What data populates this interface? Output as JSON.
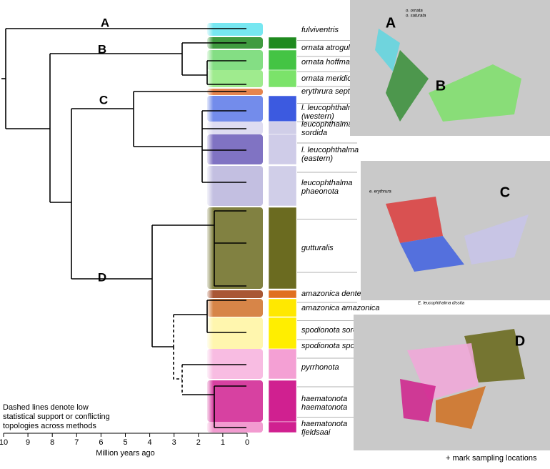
{
  "figure": {
    "clades": [
      "A",
      "B",
      "C",
      "D"
    ],
    "taxa": [
      {
        "lines": [
          "fulviventris"
        ]
      },
      {
        "lines": [
          "ornata atrogularis"
        ]
      },
      {
        "lines": [
          "ornata hoffmannsi"
        ]
      },
      {
        "lines": [
          "ornata meridionalis"
        ]
      },
      {
        "lines": [
          "erythrura septentrionalis"
        ]
      },
      {
        "lines": [
          "l. leucophthalma",
          "(western)"
        ]
      },
      {
        "lines": [
          "leucophthalma",
          "sordida"
        ]
      },
      {
        "lines": [
          "l. leucophthalma",
          "(eastern)"
        ]
      },
      {
        "lines": [
          "leucophthalma",
          "phaeonota"
        ]
      },
      {
        "lines": [
          "gutturalis"
        ]
      },
      {
        "lines": [
          "amazonica dentei"
        ]
      },
      {
        "lines": [
          "amazonica amazonica"
        ]
      },
      {
        "lines": [
          "spodionota sororia"
        ]
      },
      {
        "lines": [
          "spodionota spodionota"
        ]
      },
      {
        "lines": [
          "pyrrhonota"
        ]
      },
      {
        "lines": [
          "haematonota",
          "haematonota"
        ]
      },
      {
        "lines": [
          "haematonota",
          "fjeldsaai"
        ]
      }
    ],
    "axis": {
      "label": "Million years ago",
      "range": [
        10,
        0
      ],
      "ticks": [
        10,
        9,
        8,
        7,
        6,
        5,
        4,
        3,
        2,
        1,
        0
      ]
    },
    "note": [
      "Dashed lines denote low",
      "statistical support or conflicting",
      "topologies across methods"
    ],
    "maps": {
      "labels": [
        "A",
        "B",
        "C",
        "D"
      ],
      "small_labels": [
        "o. ornata",
        "o. saturata",
        "e. erythrura",
        "E. leucophthalma dissita"
      ]
    },
    "legend": "+ mark sampling locations"
  }
}
